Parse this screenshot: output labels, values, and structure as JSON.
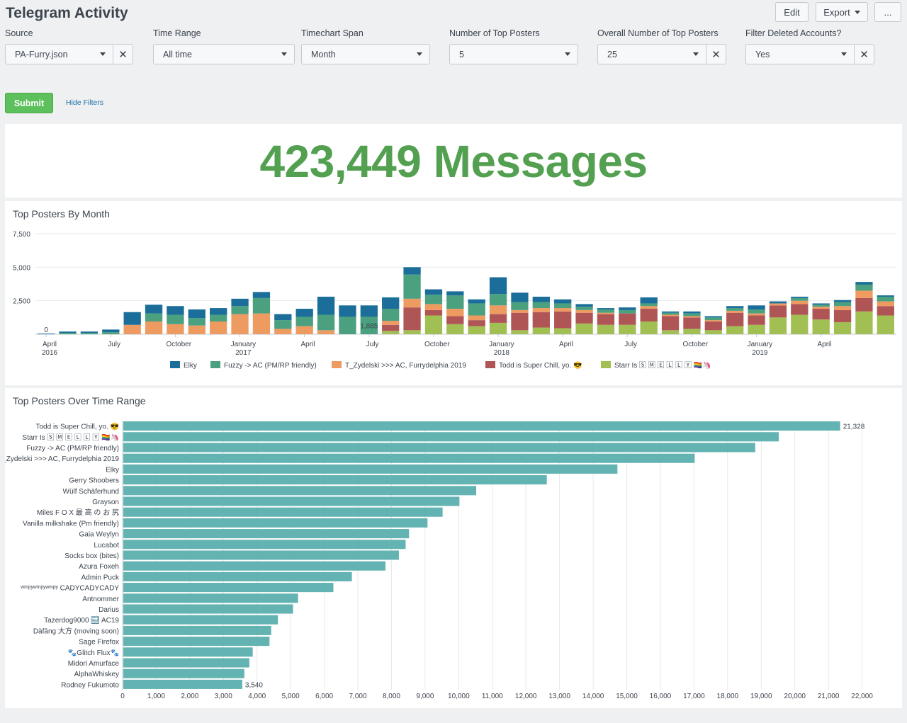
{
  "header": {
    "title": "Telegram Activity",
    "edit_label": "Edit",
    "export_label": "Export",
    "more_label": "..."
  },
  "filters": [
    {
      "label": "Source",
      "value": "PA-Furry.json",
      "clearable": true
    },
    {
      "label": "Time Range",
      "value": "All time",
      "clearable": false
    },
    {
      "label": "Timechart Span",
      "value": "Month",
      "clearable": false
    },
    {
      "label": "Number of Top Posters",
      "value": "5",
      "clearable": false
    },
    {
      "label": "Overall Number of Top Posters",
      "value": "25",
      "clearable": true
    },
    {
      "label": "Filter Deleted Accounts?",
      "value": "Yes",
      "clearable": true
    }
  ],
  "submit_label": "Submit",
  "hide_filters_label": "Hide Filters",
  "single_value": {
    "text": "423,449 Messages",
    "color": "#53a051"
  },
  "chart_data": [
    {
      "type": "bar",
      "stacked": true,
      "title": "Top Posters By Month",
      "ylim": [
        0,
        7500
      ],
      "y_ticks": [
        "0",
        "2,500",
        "5,000",
        "7,500"
      ],
      "y_tick_values": [
        0,
        2500,
        5000,
        7500
      ],
      "x_tick_labels": [
        {
          "index": 0,
          "label": "April",
          "sub": "2016"
        },
        {
          "index": 3,
          "label": "July",
          "sub": ""
        },
        {
          "index": 6,
          "label": "October",
          "sub": ""
        },
        {
          "index": 9,
          "label": "January",
          "sub": "2017"
        },
        {
          "index": 12,
          "label": "April",
          "sub": ""
        },
        {
          "index": 15,
          "label": "July",
          "sub": ""
        },
        {
          "index": 18,
          "label": "October",
          "sub": ""
        },
        {
          "index": 21,
          "label": "January",
          "sub": "2018"
        },
        {
          "index": 24,
          "label": "April",
          "sub": ""
        },
        {
          "index": 27,
          "label": "July",
          "sub": ""
        },
        {
          "index": 30,
          "label": "October",
          "sub": ""
        },
        {
          "index": 33,
          "label": "January",
          "sub": "2019"
        },
        {
          "index": 36,
          "label": "April",
          "sub": ""
        }
      ],
      "annotations": [
        {
          "index": 0,
          "text": "0"
        },
        {
          "index": 15,
          "text": "1,885"
        }
      ],
      "legend_position": "bottom",
      "series": [
        {
          "name": "Starr Is 🅂 🄼 🄴 🄻 🄻 🅈 🏳️‍🌈🦄",
          "color": "#a2bf53",
          "values": [
            0,
            0,
            0,
            0,
            0,
            0,
            0,
            0,
            0,
            0,
            0,
            0,
            0,
            0,
            0,
            0,
            250,
            300,
            1400,
            750,
            600,
            850,
            300,
            500,
            450,
            800,
            700,
            700,
            950,
            300,
            400,
            300,
            600,
            700,
            1250,
            1450,
            1100,
            900,
            1700,
            1400
          ]
        },
        {
          "name": "Todd is Super Chill, yo. 😎",
          "color": "#b05556",
          "values": [
            0,
            0,
            0,
            0,
            0,
            0,
            0,
            0,
            0,
            0,
            0,
            0,
            0,
            0,
            0,
            0,
            450,
            1700,
            400,
            600,
            450,
            650,
            1300,
            1150,
            1250,
            800,
            800,
            850,
            950,
            1050,
            850,
            650,
            1000,
            700,
            900,
            800,
            800,
            900,
            1000,
            700
          ]
        },
        {
          "name": "T_Zydelski >>> AC, Furrydelphia 2019",
          "color": "#ee9b62",
          "values": [
            0,
            0,
            0,
            0,
            700,
            950,
            750,
            650,
            950,
            1500,
            1550,
            400,
            600,
            300,
            0,
            0,
            300,
            650,
            450,
            550,
            350,
            650,
            200,
            300,
            250,
            200,
            100,
            0,
            200,
            100,
            100,
            100,
            150,
            150,
            150,
            250,
            150,
            300,
            550,
            350
          ]
        },
        {
          "name": "Fuzzy -> AC (PM/RP friendly)",
          "color": "#4ba080",
          "values": [
            0,
            100,
            100,
            150,
            0,
            600,
            700,
            550,
            500,
            600,
            1150,
            650,
            700,
            1150,
            1300,
            1300,
            900,
            1800,
            700,
            1000,
            900,
            850,
            600,
            450,
            350,
            250,
            250,
            250,
            200,
            150,
            200,
            200,
            200,
            300,
            0,
            200,
            150,
            300,
            450,
            350
          ]
        },
        {
          "name": "Elky",
          "color": "#1a6e99",
          "values": [
            50,
            100,
            100,
            200,
            950,
            650,
            650,
            650,
            500,
            550,
            450,
            450,
            600,
            1350,
            850,
            850,
            850,
            550,
            400,
            300,
            300,
            1250,
            700,
            400,
            300,
            200,
            100,
            200,
            450,
            100,
            150,
            100,
            150,
            300,
            150,
            100,
            100,
            150,
            200,
            100
          ]
        }
      ]
    },
    {
      "type": "bar",
      "orientation": "horizontal",
      "title": "Top Posters Over Time Range",
      "color": "#62b3b2",
      "xlim": [
        0,
        22000
      ],
      "x_ticks": [
        "0",
        "1,000",
        "2,000",
        "3,000",
        "4,000",
        "5,000",
        "6,000",
        "7,000",
        "8,000",
        "9,000",
        "10,000",
        "11,000",
        "12,000",
        "13,000",
        "14,000",
        "15,000",
        "16,000",
        "17,000",
        "18,000",
        "19,000",
        "20,000",
        "21,000",
        "22,000"
      ],
      "x_tick_values": [
        0,
        1000,
        2000,
        3000,
        4000,
        5000,
        6000,
        7000,
        8000,
        9000,
        10000,
        11000,
        12000,
        13000,
        14000,
        15000,
        16000,
        17000,
        18000,
        19000,
        20000,
        21000,
        22000
      ],
      "categories": [
        "Todd is Super Chill, yo. 😎",
        "Starr Is 🅂 🄼 🄴 🄻 🄻 🅈 🏳️‍🌈🦄",
        "Fuzzy -> AC (PM/RP friendly)",
        "T_Zydelski >>> AC, Furrydelphia 2019",
        "Elky",
        "Gerry Shoobers",
        "Wülf Schäferhund",
        "Grayson",
        "Miles F O X 最 高 の お 尻",
        "Vanilla milkshake (Pm friendly)",
        "Gaia Weylyn",
        "Lucabot",
        "Socks box (bites)",
        "Azura Foxeh",
        "Admin Puck",
        "ʷᵐᵖʸʷᵐᵖʸʷᵐᵖʸ CADYCADYCADY",
        "Antnommer",
        "Darius",
        "Tazerdog9000 🔜 AC19",
        "Dàfāng 大方 (moving soon)",
        "Sage Firefox",
        "🐾Glitch Flux🐾",
        "Midori Amurface",
        "AlphaWhiskey",
        "Rodney Fukumoto"
      ],
      "values": [
        21328,
        19500,
        18800,
        17000,
        14700,
        12600,
        10500,
        10000,
        9500,
        9050,
        8500,
        8400,
        8200,
        7800,
        6800,
        6250,
        5200,
        5050,
        4600,
        4400,
        4350,
        3850,
        3750,
        3600,
        3540
      ],
      "data_labels": [
        {
          "index": 0,
          "text": "21,328"
        },
        {
          "index": 24,
          "text": "3,540"
        }
      ]
    }
  ]
}
